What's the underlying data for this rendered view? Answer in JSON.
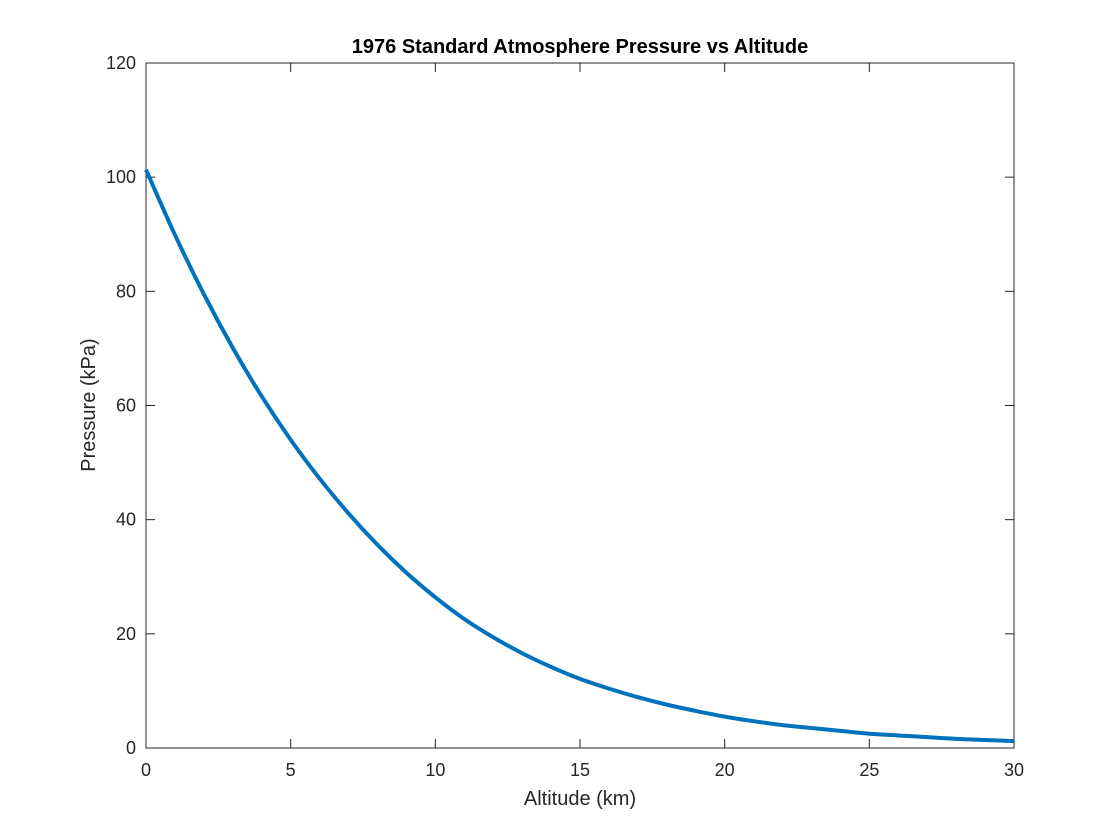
{
  "chart_data": {
    "type": "line",
    "title": "1976 Standard Atmosphere Pressure vs Altitude",
    "xlabel": "Altitude (km)",
    "ylabel": "Pressure (kPa)",
    "xlim": [
      0,
      30
    ],
    "ylim": [
      0,
      120
    ],
    "xticks": [
      "0",
      "5",
      "10",
      "15",
      "20",
      "25",
      "30"
    ],
    "yticks": [
      "0",
      "20",
      "40",
      "60",
      "80",
      "100",
      "120"
    ],
    "grid": false,
    "legend": "none",
    "series": [
      {
        "color": "#0072BD",
        "x": [
          0,
          1,
          2,
          3,
          4,
          5,
          6,
          7,
          8,
          9,
          10,
          11,
          12,
          13,
          14,
          15,
          16,
          17,
          18,
          19,
          20,
          21,
          22,
          23,
          24,
          25,
          26,
          27,
          28,
          29,
          30
        ],
        "y": [
          101.3,
          89.9,
          79.5,
          70.1,
          61.6,
          54.0,
          47.2,
          41.1,
          35.6,
          30.7,
          26.4,
          22.6,
          19.4,
          16.6,
          14.2,
          12.1,
          10.4,
          8.9,
          7.6,
          6.5,
          5.5,
          4.7,
          4.0,
          3.5,
          3.0,
          2.5,
          2.2,
          1.9,
          1.6,
          1.4,
          1.2
        ]
      }
    ]
  }
}
